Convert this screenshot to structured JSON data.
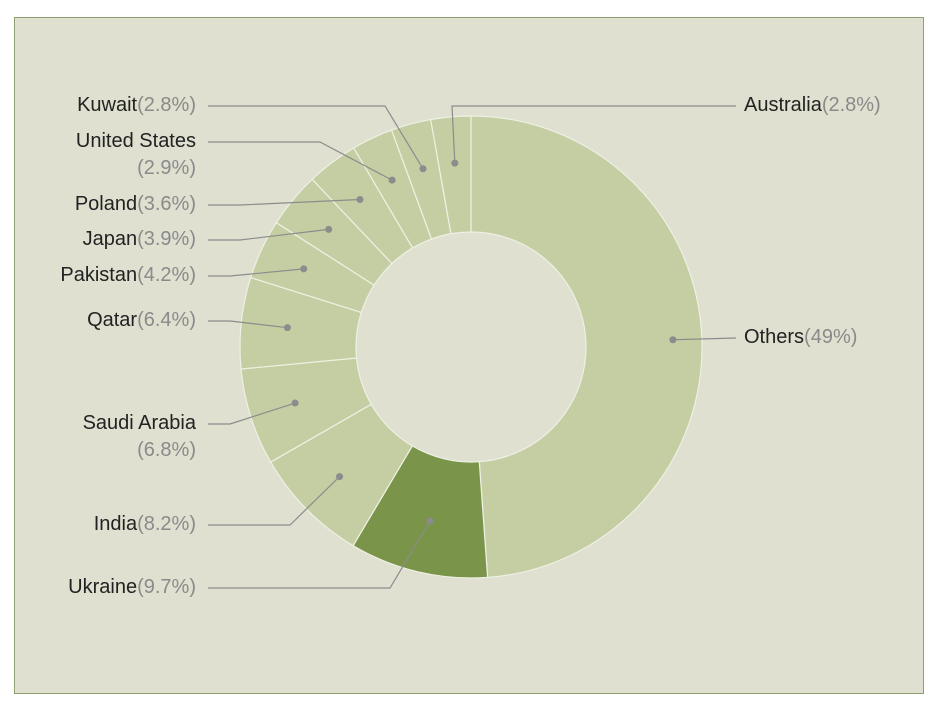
{
  "chart_data": {
    "type": "pie",
    "style": "donut",
    "colors": {
      "default": "#c4cea2",
      "highlight": "#7a944a",
      "leader": "#8c8c8c",
      "background": "#dfe0d0",
      "frame": "#8ea070"
    },
    "slices": [
      {
        "name": "Others",
        "value": 49,
        "label": "(49%)",
        "highlight": false
      },
      {
        "name": "Ukraine",
        "value": 9.7,
        "label": "(9.7%)",
        "highlight": true
      },
      {
        "name": "India",
        "value": 8.2,
        "label": "(8.2%)",
        "highlight": false
      },
      {
        "name": "Saudi Arabia",
        "value": 6.8,
        "label": "(6.8%)",
        "highlight": false
      },
      {
        "name": "Qatar",
        "value": 6.4,
        "label": "(6.4%)",
        "highlight": false
      },
      {
        "name": "Pakistan",
        "value": 4.2,
        "label": "(4.2%)",
        "highlight": false
      },
      {
        "name": "Japan",
        "value": 3.9,
        "label": "(3.9%)",
        "highlight": false
      },
      {
        "name": "Poland",
        "value": 3.6,
        "label": "(3.6%)",
        "highlight": false
      },
      {
        "name": "United States",
        "value": 2.9,
        "label": "(2.9%)",
        "highlight": false
      },
      {
        "name": "Kuwait",
        "value": 2.8,
        "label": "(2.8%)",
        "highlight": false
      },
      {
        "name": "Australia",
        "value": 2.8,
        "label": "(2.8%)",
        "highlight": false
      }
    ]
  }
}
